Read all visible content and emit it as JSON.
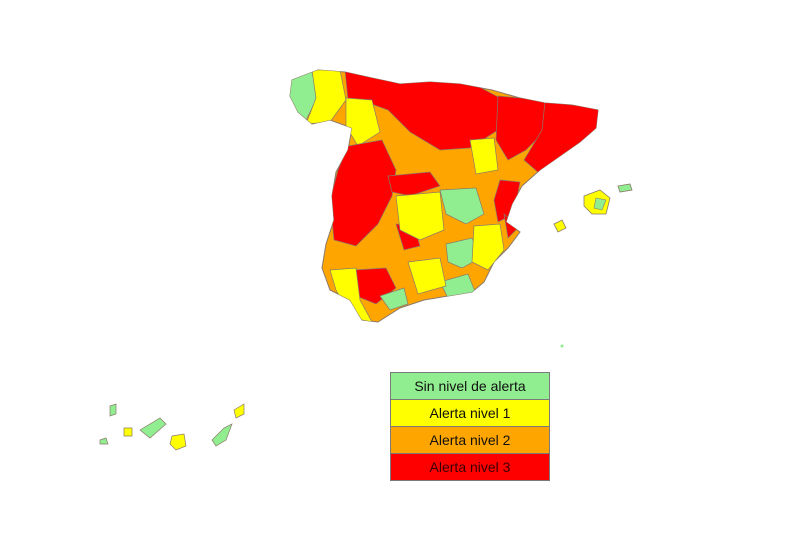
{
  "legend": {
    "items": [
      {
        "label": "Sin nivel de alerta",
        "color": "#90ee90"
      },
      {
        "label": "Alerta nivel 1",
        "color": "#ffff00"
      },
      {
        "label": "Alerta nivel 2",
        "color": "#ffa500"
      },
      {
        "label": "Alerta nivel 3",
        "color": "#ff0000"
      }
    ]
  },
  "colors": {
    "none": "#90ee90",
    "level1": "#ffff00",
    "level2": "#ffa500",
    "level3": "#ff0000",
    "border": "#8a7a6a",
    "background": "#ffffff"
  }
}
